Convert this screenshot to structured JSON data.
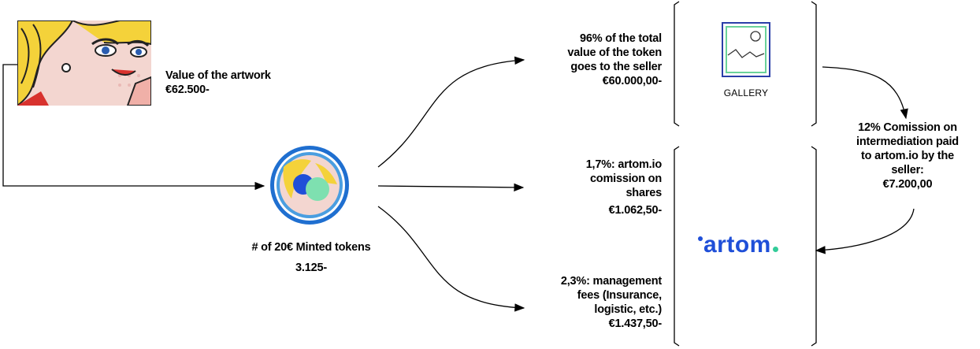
{
  "artwork": {
    "value_title": "Value of the artwork",
    "value_amount": "€62.500-"
  },
  "tokens": {
    "label": "# of 20€ Minted tokens",
    "count": "3.125-"
  },
  "seller_share": {
    "lines": [
      "96% of the total",
      "value of the token",
      "goes to the seller"
    ],
    "amount": "€60.000,00-"
  },
  "artom_commission": {
    "lines": [
      "1,7%: artom.io",
      "comission on",
      "shares"
    ],
    "amount": "€1.062,50-"
  },
  "management_fees": {
    "lines": [
      "2,3%: management",
      "fees  (Insurance,",
      "logistic, etc.)"
    ],
    "amount": "€1.437,50-"
  },
  "gallery": {
    "label": "GALLERY",
    "icon": "landscape-picture-icon"
  },
  "intermediation": {
    "lines": [
      "12% Comission on",
      "intermediation paid",
      "to artom.io by the",
      "seller:"
    ],
    "amount": "€7.200,00"
  },
  "brand": {
    "logo_text": "artom",
    "accent_color": "#1f4fd8",
    "dot_color": "#33cc99"
  }
}
